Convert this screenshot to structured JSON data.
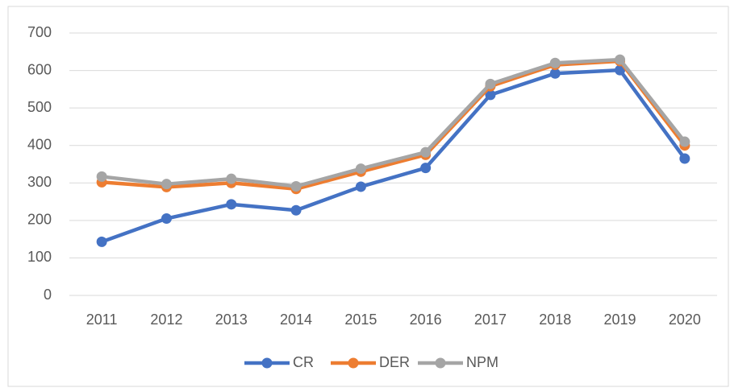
{
  "chart_data": {
    "type": "line",
    "categories": [
      "2011",
      "2012",
      "2013",
      "2014",
      "2015",
      "2016",
      "2017",
      "2018",
      "2019",
      "2020"
    ],
    "series": [
      {
        "name": "CR",
        "color": "#4472c4",
        "values": [
          143,
          205,
          243,
          227,
          290,
          340,
          535,
          592,
          601,
          365
        ]
      },
      {
        "name": "DER",
        "color": "#ed7d31",
        "values": [
          302,
          289,
          300,
          284,
          330,
          375,
          558,
          615,
          625,
          400
        ]
      },
      {
        "name": "NPM",
        "color": "#a5a5a5",
        "values": [
          317,
          297,
          311,
          291,
          338,
          382,
          564,
          620,
          629,
          410
        ]
      }
    ],
    "ylim": [
      0,
      700
    ],
    "yticks": [
      0,
      100,
      200,
      300,
      400,
      500,
      600,
      700
    ],
    "grid": true,
    "legend": "bottom"
  }
}
